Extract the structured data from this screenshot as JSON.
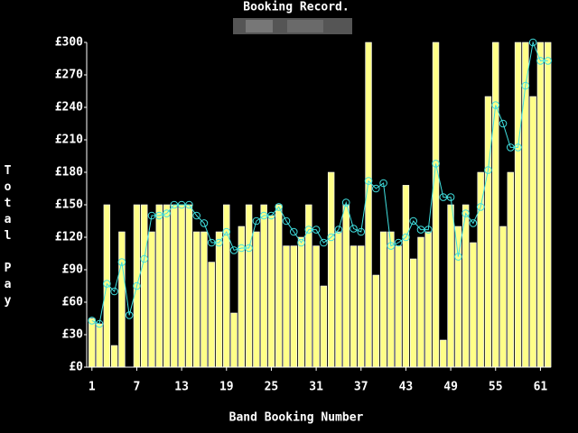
{
  "chart_data": {
    "type": "bar",
    "title": "Booking Record.",
    "x_label": "Band Booking Number",
    "y_label": "Total Pay",
    "x": [
      1,
      2,
      3,
      4,
      5,
      6,
      7,
      8,
      9,
      10,
      11,
      12,
      13,
      14,
      15,
      16,
      17,
      18,
      19,
      20,
      21,
      22,
      23,
      24,
      25,
      26,
      27,
      28,
      29,
      30,
      31,
      32,
      33,
      34,
      35,
      36,
      37,
      38,
      39,
      40,
      41,
      42,
      43,
      44,
      45,
      46,
      47,
      48,
      49,
      50,
      51,
      52,
      53,
      54,
      55,
      56,
      57,
      58,
      59,
      60,
      61,
      62
    ],
    "series": [
      {
        "type": "bar",
        "color": "#ffff88",
        "values": [
          45,
          40,
          150,
          20,
          125,
          0,
          150,
          150,
          125,
          150,
          150,
          150,
          150,
          150,
          125,
          125,
          97,
          125,
          150,
          50,
          130,
          150,
          125,
          150,
          140,
          150,
          112,
          112,
          120,
          150,
          112,
          75,
          180,
          125,
          150,
          112,
          112,
          300,
          85,
          125,
          125,
          112,
          168,
          100,
          120,
          125,
          300,
          25,
          150,
          130,
          150,
          115,
          180,
          250,
          300,
          130,
          180,
          300,
          300,
          250,
          300,
          300
        ]
      },
      {
        "type": "line",
        "color": "#40e0e0",
        "values": [
          43,
          40,
          77,
          70,
          97,
          48,
          75,
          100,
          140,
          140,
          142,
          150,
          150,
          150,
          140,
          133,
          115,
          115,
          125,
          108,
          110,
          110,
          135,
          140,
          140,
          148,
          135,
          125,
          115,
          127,
          127,
          115,
          120,
          127,
          152,
          128,
          125,
          172,
          165,
          170,
          112,
          115,
          120,
          135,
          127,
          127,
          188,
          157,
          157,
          102,
          142,
          133,
          148,
          182,
          242,
          225,
          203,
          203,
          260,
          300,
          283,
          283
        ]
      }
    ],
    "xlim": [
      0.3,
      62.4
    ],
    "xticks": [
      1,
      7,
      13,
      19,
      25,
      31,
      37,
      43,
      49,
      55,
      61
    ],
    "ylim": [
      0,
      300
    ],
    "yticks": [
      {
        "value": 0,
        "label": "£0"
      },
      {
        "value": 30,
        "label": "£30"
      },
      {
        "value": 60,
        "label": "£60"
      },
      {
        "value": 90,
        "label": "£90"
      },
      {
        "value": 120,
        "label": "£120"
      },
      {
        "value": 150,
        "label": "£150"
      },
      {
        "value": 180,
        "label": "£180"
      },
      {
        "value": 210,
        "label": "£210"
      },
      {
        "value": 240,
        "label": "£240"
      },
      {
        "value": 270,
        "label": "£270"
      },
      {
        "value": 300,
        "label": "£300"
      }
    ]
  }
}
